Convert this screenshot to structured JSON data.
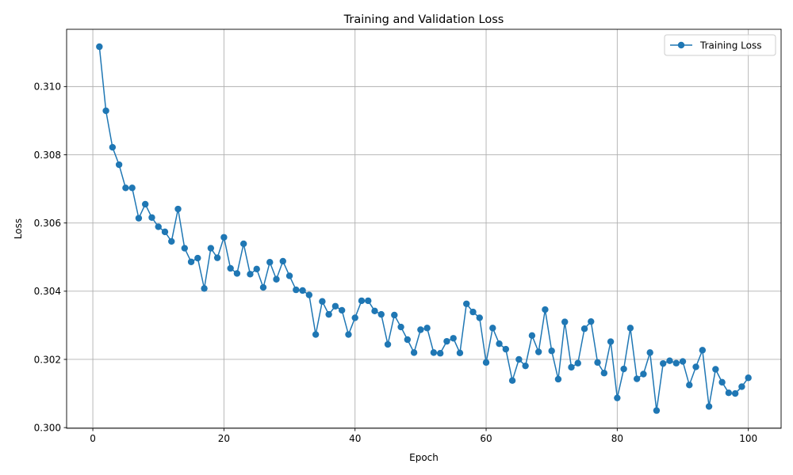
{
  "chart_data": {
    "type": "line",
    "title": "Training and Validation Loss",
    "xlabel": "Epoch",
    "ylabel": "Loss",
    "xlim": [
      -4,
      105
    ],
    "ylim": [
      0.29998,
      0.31168
    ],
    "x_ticks": [
      0,
      20,
      40,
      60,
      80,
      100
    ],
    "y_ticks": [
      0.3,
      0.302,
      0.304,
      0.306,
      0.308,
      0.31
    ],
    "x_tick_labels": [
      "0",
      "20",
      "40",
      "60",
      "80",
      "100"
    ],
    "y_tick_labels": [
      "0.300",
      "0.302",
      "0.304",
      "0.306",
      "0.308",
      "0.310"
    ],
    "grid": true,
    "legend_position": "top-right",
    "series": [
      {
        "name": "Training Loss",
        "color": "#1f77b4",
        "marker": "circle",
        "x": [
          1,
          2,
          3,
          4,
          5,
          6,
          7,
          8,
          9,
          10,
          11,
          12,
          13,
          14,
          15,
          16,
          17,
          18,
          19,
          20,
          21,
          22,
          23,
          24,
          25,
          26,
          27,
          28,
          29,
          30,
          31,
          32,
          33,
          34,
          35,
          36,
          37,
          38,
          39,
          40,
          41,
          42,
          43,
          44,
          45,
          46,
          47,
          48,
          49,
          50,
          51,
          52,
          53,
          54,
          55,
          56,
          57,
          58,
          59,
          60,
          61,
          62,
          63,
          64,
          65,
          66,
          67,
          68,
          69,
          70,
          71,
          72,
          73,
          74,
          75,
          76,
          77,
          78,
          79,
          80,
          81,
          82,
          83,
          84,
          85,
          86,
          87,
          88,
          89,
          90,
          91,
          92,
          93,
          94,
          95,
          96,
          97,
          98,
          99,
          100
        ],
        "values": [
          0.31117,
          0.30929,
          0.30822,
          0.30771,
          0.30703,
          0.30703,
          0.30614,
          0.30655,
          0.30616,
          0.30589,
          0.30574,
          0.30546,
          0.30641,
          0.30526,
          0.30486,
          0.30497,
          0.30408,
          0.30526,
          0.30498,
          0.30558,
          0.30467,
          0.30452,
          0.30539,
          0.3045,
          0.30465,
          0.30411,
          0.30485,
          0.30435,
          0.30488,
          0.30445,
          0.30404,
          0.30402,
          0.30389,
          0.30273,
          0.3037,
          0.30332,
          0.30356,
          0.30344,
          0.30273,
          0.30322,
          0.30372,
          0.30372,
          0.30342,
          0.30332,
          0.30244,
          0.3033,
          0.30295,
          0.30258,
          0.3022,
          0.30287,
          0.30292,
          0.3022,
          0.30218,
          0.30253,
          0.30262,
          0.30219,
          0.30363,
          0.30339,
          0.30322,
          0.30191,
          0.30292,
          0.30246,
          0.3023,
          0.30138,
          0.302,
          0.30181,
          0.3027,
          0.30222,
          0.30346,
          0.30225,
          0.30142,
          0.3031,
          0.30177,
          0.30189,
          0.3029,
          0.30311,
          0.30191,
          0.3016,
          0.30252,
          0.30087,
          0.30172,
          0.30292,
          0.30143,
          0.30157,
          0.3022,
          0.3005,
          0.30188,
          0.30196,
          0.30189,
          0.30194,
          0.30125,
          0.30178,
          0.30227,
          0.30062,
          0.30171,
          0.30133,
          0.30102,
          0.301,
          0.3012,
          0.30146
        ]
      }
    ]
  }
}
